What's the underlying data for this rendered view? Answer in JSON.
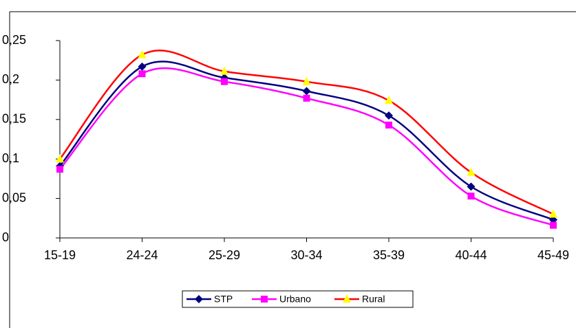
{
  "chart_data": {
    "type": "line",
    "categories": [
      "15-19",
      "24-24",
      "25-29",
      "30-34",
      "35-39",
      "40-44",
      "45-49"
    ],
    "series": [
      {
        "name": "STP",
        "color": "#000080",
        "marker": "diamond",
        "values": [
          0.091,
          0.217,
          0.203,
          0.186,
          0.155,
          0.065,
          0.023
        ]
      },
      {
        "name": "Urbano",
        "color": "#ff00ff",
        "marker": "square",
        "values": [
          0.087,
          0.208,
          0.198,
          0.177,
          0.143,
          0.053,
          0.016
        ]
      },
      {
        "name": "Rural",
        "color": "#ff0000",
        "marker_color": "#ffff00",
        "marker": "triangle",
        "values": [
          0.1,
          0.232,
          0.211,
          0.198,
          0.174,
          0.083,
          0.03
        ]
      }
    ],
    "ylim": [
      0,
      0.25
    ],
    "yticks": [
      0,
      {
        "value": 0.05,
        "label": "0,05"
      },
      {
        "value": 0.1,
        "label": "0,1"
      },
      {
        "value": 0.15,
        "label": "0,15"
      },
      {
        "value": 0.2,
        "label": "0,2"
      },
      {
        "value": 0.25,
        "label": "0,25"
      }
    ],
    "legend": "bottom"
  }
}
